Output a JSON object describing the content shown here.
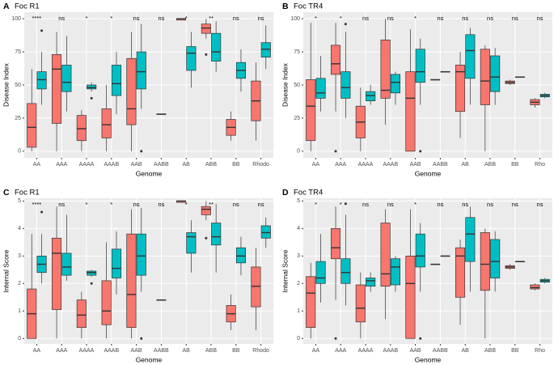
{
  "chart_data": [
    {
      "type": "box",
      "panel": "A",
      "title": "Foc R1",
      "x_label": "Genome",
      "y_label": "Disease Index",
      "categories": [
        "AA",
        "AAA",
        "AAAA",
        "AAAB",
        "AAB",
        "AABB",
        "AB",
        "ABB",
        "BB",
        "Rhodo"
      ],
      "ylim": [
        -5,
        105
      ],
      "yticks": [
        0,
        25,
        50,
        75,
        100
      ],
      "grid": true,
      "significance": [
        "****",
        "ns",
        "*",
        "*",
        "ns",
        "ns",
        "*",
        "**",
        "ns",
        "ns"
      ],
      "series": [
        {
          "color": "#F8766D",
          "values": [
            {
              "min": 0,
              "q1": 3,
              "median": 18,
              "q3": 36,
              "max": 62,
              "outliers": []
            },
            {
              "min": 0,
              "q1": 21,
              "median": 62,
              "q3": 73,
              "max": 90,
              "outliers": []
            },
            {
              "min": 0,
              "q1": 8,
              "median": 17,
              "q3": 27,
              "max": 31,
              "outliers": []
            },
            {
              "min": 0,
              "q1": 10,
              "median": 20,
              "q3": 32,
              "max": 50,
              "outliers": []
            },
            {
              "min": 0,
              "q1": 20,
              "median": 32,
              "q3": 70,
              "max": 90,
              "outliers": []
            },
            {
              "min": 28,
              "q1": 28,
              "median": 28,
              "q3": 28,
              "max": 28,
              "outliers": []
            },
            {
              "min": 99,
              "q1": 99,
              "median": 100,
              "q3": 100,
              "max": 100,
              "outliers": []
            },
            {
              "min": 85,
              "q1": 89,
              "median": 93,
              "q3": 96,
              "max": 100,
              "outliers": [
                73
              ]
            },
            {
              "min": 8,
              "q1": 12,
              "median": 18,
              "q3": 24,
              "max": 30,
              "outliers": []
            },
            {
              "min": 8,
              "q1": 23,
              "median": 38,
              "q3": 53,
              "max": 67,
              "outliers": []
            }
          ]
        },
        {
          "color": "#00BFC4",
          "values": [
            {
              "min": 35,
              "q1": 47,
              "median": 54,
              "q3": 60,
              "max": 75,
              "outliers": [
                91
              ]
            },
            {
              "min": 30,
              "q1": 45,
              "median": 52,
              "q3": 65,
              "max": 87,
              "outliers": []
            },
            {
              "min": 45,
              "q1": 47,
              "median": 48,
              "q3": 50,
              "max": 52,
              "outliers": [
                40
              ]
            },
            {
              "min": 28,
              "q1": 42,
              "median": 51,
              "q3": 65,
              "max": 75,
              "outliers": []
            },
            {
              "min": 32,
              "q1": 47,
              "median": 60,
              "q3": 75,
              "max": 96,
              "outliers": [
                0
              ]
            },
            null,
            {
              "min": 48,
              "q1": 61,
              "median": 74,
              "q3": 79,
              "max": 90,
              "outliers": []
            },
            {
              "min": 60,
              "q1": 68,
              "median": 75,
              "q3": 89,
              "max": 98,
              "outliers": []
            },
            {
              "min": 45,
              "q1": 55,
              "median": 61,
              "q3": 67,
              "max": 77,
              "outliers": []
            },
            {
              "min": 62,
              "q1": 71,
              "median": 77,
              "q3": 82,
              "max": 95,
              "outliers": []
            }
          ]
        }
      ]
    },
    {
      "type": "box",
      "panel": "B",
      "title": "Foc TR4",
      "x_label": "Genome",
      "y_label": "Disease Index",
      "categories": [
        "AA",
        "AAA",
        "AAAA",
        "AAAB",
        "AAB",
        "AABB",
        "AB",
        "ABB",
        "BB",
        "Rho"
      ],
      "ylim": [
        -5,
        105
      ],
      "yticks": [
        0,
        25,
        50,
        75,
        100
      ],
      "grid": true,
      "significance": [
        "*",
        "*",
        "ns",
        "ns",
        "*",
        "ns",
        "ns",
        "ns",
        "ns",
        "ns"
      ],
      "series": [
        {
          "color": "#F8766D",
          "values": [
            {
              "min": 0,
              "q1": 8,
              "median": 34,
              "q3": 54,
              "max": 97,
              "outliers": []
            },
            {
              "min": 30,
              "q1": 58,
              "median": 66,
              "q3": 80,
              "max": 97,
              "outliers": [
                0
              ]
            },
            {
              "min": 0,
              "q1": 10,
              "median": 22,
              "q3": 34,
              "max": 48,
              "outliers": []
            },
            {
              "min": 20,
              "q1": 40,
              "median": 46,
              "q3": 84,
              "max": 100,
              "outliers": []
            },
            {
              "min": 0,
              "q1": 0,
              "median": 40,
              "q3": 60,
              "max": 92,
              "outliers": []
            },
            {
              "min": 54,
              "q1": 54,
              "median": 54,
              "q3": 54,
              "max": 54,
              "outliers": []
            },
            {
              "min": 10,
              "q1": 30,
              "median": 60,
              "q3": 65,
              "max": 75,
              "outliers": []
            },
            {
              "min": 0,
              "q1": 35,
              "median": 53,
              "q3": 77,
              "max": 80,
              "outliers": []
            },
            {
              "min": 50,
              "q1": 51,
              "median": 52,
              "q3": 53,
              "max": 54,
              "outliers": []
            },
            {
              "min": 33,
              "q1": 35,
              "median": 37,
              "q3": 39,
              "max": 40,
              "outliers": []
            }
          ]
        },
        {
          "color": "#00BFC4",
          "values": [
            {
              "min": 30,
              "q1": 40,
              "median": 44,
              "q3": 55,
              "max": 72,
              "outliers": []
            },
            {
              "min": 25,
              "q1": 40,
              "median": 48,
              "q3": 60,
              "max": 90,
              "outliers": [
                96
              ]
            },
            {
              "min": 35,
              "q1": 38,
              "median": 42,
              "q3": 45,
              "max": 50,
              "outliers": []
            },
            {
              "min": 35,
              "q1": 44,
              "median": 52,
              "q3": 58,
              "max": 60,
              "outliers": []
            },
            {
              "min": 35,
              "q1": 52,
              "median": 60,
              "q3": 77,
              "max": 85,
              "outliers": [
                0
              ]
            },
            {
              "min": 60,
              "q1": 60,
              "median": 60,
              "q3": 60,
              "max": 60,
              "outliers": []
            },
            {
              "min": 35,
              "q1": 55,
              "median": 76,
              "q3": 88,
              "max": 93,
              "outliers": []
            },
            {
              "min": 35,
              "q1": 45,
              "median": 56,
              "q3": 72,
              "max": 78,
              "outliers": []
            },
            {
              "min": 56,
              "q1": 56,
              "median": 56,
              "q3": 56,
              "max": 56,
              "outliers": []
            },
            {
              "min": 40,
              "q1": 41,
              "median": 42,
              "q3": 43,
              "max": 44,
              "outliers": []
            }
          ]
        }
      ]
    },
    {
      "type": "box",
      "panel": "C",
      "title": "Foc R1",
      "x_label": "Genome",
      "y_label": "Internal Score",
      "categories": [
        "AA",
        "AAA",
        "AAAA",
        "AAAB",
        "AAB",
        "AABB",
        "AB",
        "ABB",
        "BB",
        "Rhodo"
      ],
      "ylim": [
        -0.2,
        5.1
      ],
      "yticks": [
        0,
        1,
        2,
        3,
        4,
        5
      ],
      "grid": true,
      "significance": [
        "****",
        "ns",
        "*",
        "*",
        "ns",
        "ns",
        "*",
        "**",
        "ns",
        "ns"
      ],
      "series": [
        {
          "color": "#F8766D",
          "values": [
            {
              "min": 0,
              "q1": 0,
              "median": 0.9,
              "q3": 1.8,
              "max": 3.8,
              "outliers": []
            },
            {
              "min": 0,
              "q1": 1.05,
              "median": 3.1,
              "q3": 3.65,
              "max": 4.8,
              "outliers": []
            },
            {
              "min": 0,
              "q1": 0.4,
              "median": 0.85,
              "q3": 1.4,
              "max": 1.7,
              "outliers": []
            },
            {
              "min": 0,
              "q1": 0.5,
              "median": 1.0,
              "q3": 2.1,
              "max": 3.5,
              "outliers": []
            },
            {
              "min": 0,
              "q1": 0.4,
              "median": 1.6,
              "q3": 3.8,
              "max": 4.7,
              "outliers": []
            },
            {
              "min": 1.4,
              "q1": 1.4,
              "median": 1.4,
              "q3": 1.4,
              "max": 1.4,
              "outliers": []
            },
            {
              "min": 4.95,
              "q1": 4.95,
              "median": 5,
              "q3": 5,
              "max": 5,
              "outliers": []
            },
            {
              "min": 4.3,
              "q1": 4.5,
              "median": 4.7,
              "q3": 4.8,
              "max": 5,
              "outliers": [
                3.65
              ]
            },
            {
              "min": 0.3,
              "q1": 0.6,
              "median": 0.9,
              "q3": 1.2,
              "max": 1.6,
              "outliers": []
            },
            {
              "min": 0.3,
              "q1": 1.15,
              "median": 1.9,
              "q3": 2.6,
              "max": 3.3,
              "outliers": []
            }
          ]
        },
        {
          "color": "#00BFC4",
          "values": [
            {
              "min": 2,
              "q1": 2.4,
              "median": 2.7,
              "q3": 3.0,
              "max": 3.8,
              "outliers": [
                4.6
              ]
            },
            {
              "min": 2.1,
              "q1": 2.3,
              "median": 2.6,
              "q3": 3.1,
              "max": 4.5,
              "outliers": []
            },
            {
              "min": 2.25,
              "q1": 2.3,
              "median": 2.4,
              "q3": 2.45,
              "max": 2.5,
              "outliers": [
                2.0
              ]
            },
            {
              "min": 1.6,
              "q1": 2.2,
              "median": 2.55,
              "q3": 3.25,
              "max": 3.9,
              "outliers": []
            },
            {
              "min": 1.7,
              "q1": 2.3,
              "median": 3.0,
              "q3": 3.8,
              "max": 4.75,
              "outliers": [
                0
              ]
            },
            null,
            {
              "min": 2.4,
              "q1": 3.1,
              "median": 3.7,
              "q3": 3.85,
              "max": 4.3,
              "outliers": []
            },
            {
              "min": 2.4,
              "q1": 3.4,
              "median": 3.7,
              "q3": 4.2,
              "max": 4.9,
              "outliers": []
            },
            {
              "min": 2.3,
              "q1": 2.75,
              "median": 3.0,
              "q3": 3.3,
              "max": 3.7,
              "outliers": []
            },
            {
              "min": 3.3,
              "q1": 3.65,
              "median": 3.85,
              "q3": 4.1,
              "max": 4.4,
              "outliers": []
            }
          ]
        }
      ]
    },
    {
      "type": "box",
      "panel": "D",
      "title": "Foc TR4",
      "x_label": "Genome",
      "y_label": "Internal Score",
      "categories": [
        "AA",
        "AAA",
        "AAAA",
        "AAAB",
        "AAB",
        "AABB",
        "AB",
        "ABB",
        "BB",
        "Rho"
      ],
      "ylim": [
        -0.2,
        5.1
      ],
      "yticks": [
        0,
        1,
        2,
        3,
        4,
        5
      ],
      "grid": true,
      "significance": [
        "*",
        "*",
        "ns",
        "ns",
        "*",
        "ns",
        "ns",
        "ns",
        "ns",
        "ns"
      ],
      "series": [
        {
          "color": "#F8766D",
          "values": [
            {
              "min": 0,
              "q1": 0.4,
              "median": 1.65,
              "q3": 2.25,
              "max": 2.75,
              "outliers": []
            },
            {
              "min": 1.4,
              "q1": 2.9,
              "median": 3.3,
              "q3": 4.0,
              "max": 4.8,
              "outliers": [
                0
              ]
            },
            {
              "min": 0,
              "q1": 0.6,
              "median": 1.1,
              "q3": 1.95,
              "max": 2.4,
              "outliers": []
            },
            {
              "min": 0.7,
              "q1": 1.9,
              "median": 2.35,
              "q3": 4.2,
              "max": 4.7,
              "outliers": []
            },
            {
              "min": 0,
              "q1": 0,
              "median": 2.0,
              "q3": 3.0,
              "max": 4.7,
              "outliers": []
            },
            {
              "min": 2.7,
              "q1": 2.7,
              "median": 2.7,
              "q3": 2.7,
              "max": 2.7,
              "outliers": []
            },
            {
              "min": 0.5,
              "q1": 1.5,
              "median": 3.0,
              "q3": 3.3,
              "max": 3.6,
              "outliers": []
            },
            {
              "min": 0,
              "q1": 1.75,
              "median": 2.7,
              "q3": 3.85,
              "max": 4.0,
              "outliers": []
            },
            {
              "min": 2.5,
              "q1": 2.55,
              "median": 2.6,
              "q3": 2.65,
              "max": 2.7,
              "outliers": []
            },
            {
              "min": 1.75,
              "q1": 1.8,
              "median": 1.85,
              "q3": 1.95,
              "max": 2.0,
              "outliers": []
            }
          ]
        },
        {
          "color": "#00BFC4",
          "values": [
            {
              "min": 1.3,
              "q1": 2.0,
              "median": 2.2,
              "q3": 2.8,
              "max": 3.8,
              "outliers": []
            },
            {
              "min": 1.2,
              "q1": 2.0,
              "median": 2.4,
              "q3": 2.9,
              "max": 4.5,
              "outliers": [
                4.9
              ]
            },
            {
              "min": 1.7,
              "q1": 1.9,
              "median": 2.1,
              "q3": 2.2,
              "max": 2.4,
              "outliers": []
            },
            {
              "min": 1.7,
              "q1": 1.95,
              "median": 2.6,
              "q3": 2.9,
              "max": 3.0,
              "outliers": []
            },
            {
              "min": 1.7,
              "q1": 2.6,
              "median": 3.0,
              "q3": 3.8,
              "max": 4.2,
              "outliers": [
                0
              ]
            },
            {
              "min": 3.0,
              "q1": 3.0,
              "median": 3.0,
              "q3": 3.0,
              "max": 3.0,
              "outliers": []
            },
            {
              "min": 1.7,
              "q1": 2.8,
              "median": 3.8,
              "q3": 4.4,
              "max": 4.8,
              "outliers": []
            },
            {
              "min": 1.7,
              "q1": 2.2,
              "median": 2.8,
              "q3": 3.6,
              "max": 3.9,
              "outliers": []
            },
            {
              "min": 2.8,
              "q1": 2.8,
              "median": 2.8,
              "q3": 2.8,
              "max": 2.8,
              "outliers": []
            },
            {
              "min": 2.0,
              "q1": 2.05,
              "median": 2.1,
              "q3": 2.15,
              "max": 2.2,
              "outliers": []
            }
          ]
        }
      ]
    }
  ]
}
